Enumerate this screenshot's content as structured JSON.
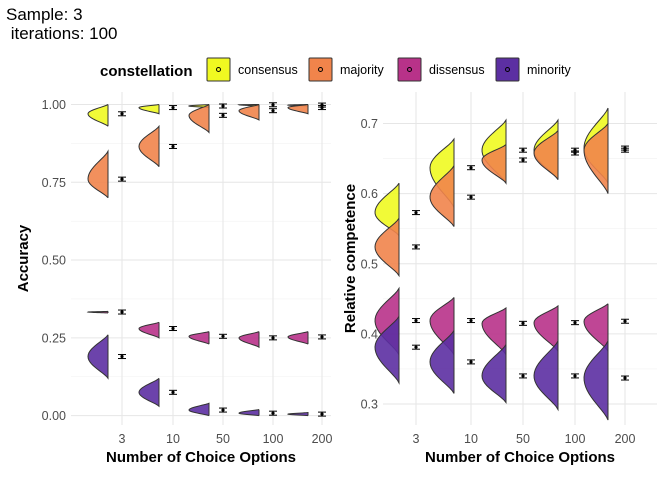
{
  "title_lines": [
    "Sample: 3",
    " iterations: 100"
  ],
  "legend": {
    "title": "constellation",
    "items": [
      {
        "label": "consensus",
        "color": "#f0f921"
      },
      {
        "label": "majority",
        "color": "#f1844b"
      },
      {
        "label": "dissensus",
        "color": "#b83289"
      },
      {
        "label": "minority",
        "color": "#5c2fa2"
      }
    ]
  },
  "chart_data": [
    {
      "type": "violin",
      "xlabel": "Number of Choice Options",
      "ylabel": "Accuracy",
      "categories": [
        "3",
        "10",
        "50",
        "100",
        "200"
      ],
      "ylim": [
        -0.03,
        1.04
      ],
      "yticks": [
        "0.00",
        "0.25",
        "0.50",
        "0.75",
        "1.00"
      ],
      "ytick_values": [
        0,
        0.25,
        0.5,
        0.75,
        1.0
      ],
      "series": [
        {
          "name": "consensus",
          "means": [
            0.97,
            0.99,
            0.995,
            0.999,
            0.998
          ],
          "distributions": [
            [
              0.93,
              1.0
            ],
            [
              0.97,
              1.0
            ],
            [
              0.99,
              1.0
            ],
            [
              0.995,
              1.0
            ],
            [
              0.995,
              1.0
            ]
          ]
        },
        {
          "name": "majority",
          "means": [
            0.76,
            0.865,
            0.965,
            0.98,
            0.99
          ],
          "distributions": [
            [
              0.7,
              0.85
            ],
            [
              0.8,
              0.93
            ],
            [
              0.91,
              1.0
            ],
            [
              0.95,
              1.0
            ],
            [
              0.97,
              1.0
            ]
          ]
        },
        {
          "name": "dissensus",
          "means": [
            0.333,
            0.28,
            0.255,
            0.25,
            0.253
          ],
          "distributions": [
            [
              0.33,
              0.335
            ],
            [
              0.25,
              0.3
            ],
            [
              0.23,
              0.27
            ],
            [
              0.22,
              0.27
            ],
            [
              0.23,
              0.27
            ]
          ]
        },
        {
          "name": "minority",
          "means": [
            0.19,
            0.075,
            0.018,
            0.008,
            0.005
          ],
          "distributions": [
            [
              0.12,
              0.26
            ],
            [
              0.03,
              0.12
            ],
            [
              0.0,
              0.04
            ],
            [
              0.0,
              0.02
            ],
            [
              0.0,
              0.01
            ]
          ]
        }
      ]
    },
    {
      "type": "violin",
      "xlabel": "Number of Choice Options",
      "ylabel": "Relative competence",
      "categories": [
        "3",
        "10",
        "50",
        "100",
        "200"
      ],
      "ylim": [
        0.27,
        0.745
      ],
      "yticks": [
        "0.3",
        "0.4",
        "0.5",
        "0.6",
        "0.7"
      ],
      "ytick_values": [
        0.3,
        0.4,
        0.5,
        0.6,
        0.7
      ],
      "series": [
        {
          "name": "consensus",
          "means": [
            0.573,
            0.637,
            0.662,
            0.662,
            0.665
          ],
          "distributions": [
            [
              0.54,
              0.615
            ],
            [
              0.58,
              0.678
            ],
            [
              0.615,
              0.705
            ],
            [
              0.62,
              0.705
            ],
            [
              0.615,
              0.722
            ]
          ]
        },
        {
          "name": "majority",
          "means": [
            0.524,
            0.595,
            0.648,
            0.658,
            0.662
          ],
          "distributions": [
            [
              0.483,
              0.565
            ],
            [
              0.553,
              0.64
            ],
            [
              0.615,
              0.67
            ],
            [
              0.62,
              0.69
            ],
            [
              0.6,
              0.7
            ]
          ]
        },
        {
          "name": "dissensus",
          "means": [
            0.419,
            0.419,
            0.415,
            0.416,
            0.418
          ],
          "distributions": [
            [
              0.37,
              0.465
            ],
            [
              0.37,
              0.452
            ],
            [
              0.37,
              0.437
            ],
            [
              0.375,
              0.44
            ],
            [
              0.375,
              0.443
            ]
          ]
        },
        {
          "name": "minority",
          "means": [
            0.381,
            0.36,
            0.34,
            0.34,
            0.337
          ],
          "distributions": [
            [
              0.33,
              0.425
            ],
            [
              0.315,
              0.405
            ],
            [
              0.302,
              0.385
            ],
            [
              0.292,
              0.39
            ],
            [
              0.277,
              0.39
            ]
          ]
        }
      ]
    }
  ]
}
